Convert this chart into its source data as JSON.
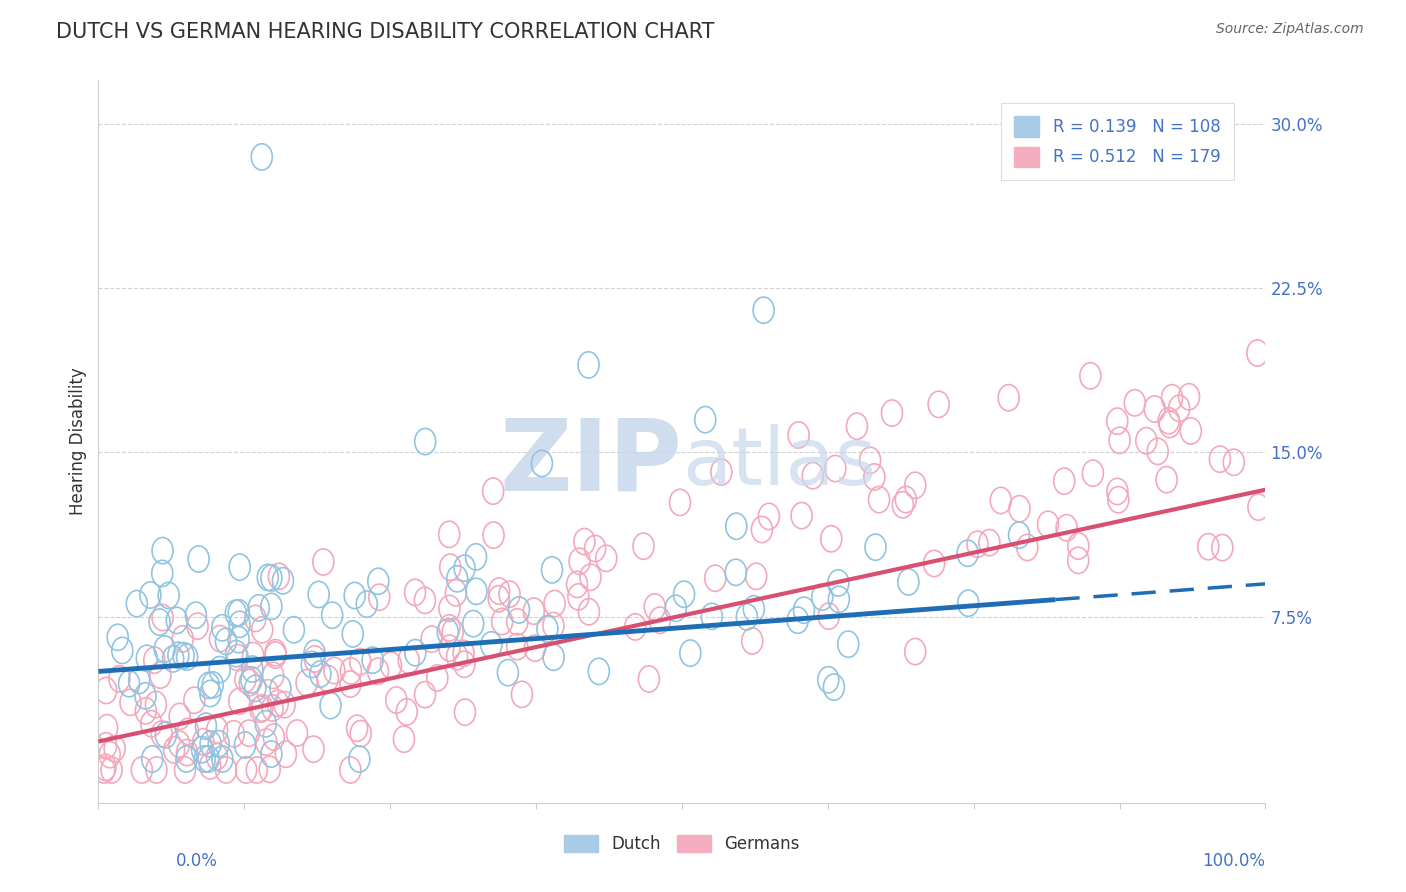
{
  "title": "DUTCH VS GERMAN HEARING DISABILITY CORRELATION CHART",
  "source": "Source: ZipAtlas.com",
  "ylabel": "Hearing Disability",
  "dutch_R": "R = 0.139",
  "dutch_N": "N = 108",
  "german_R": "R = 0.512",
  "german_N": "N = 179",
  "dutch_color": "#91c4e0",
  "german_color": "#f4a8bc",
  "dutch_line_color": "#1f6eb5",
  "german_line_color": "#d94f70",
  "watermark_color": "#d8e4f0",
  "ytick_vals": [
    0.075,
    0.15,
    0.225,
    0.3
  ],
  "ytick_labels": [
    "7.5%",
    "15.0%",
    "22.5%",
    "30.0%"
  ],
  "xlim": [
    0.0,
    1.0
  ],
  "ylim": [
    -0.01,
    0.32
  ],
  "title_color": "#333333",
  "source_color": "#666666",
  "ylabel_color": "#333333",
  "axis_color": "#cccccc",
  "grid_color": "#cccccc",
  "tick_label_color": "#4472C4"
}
